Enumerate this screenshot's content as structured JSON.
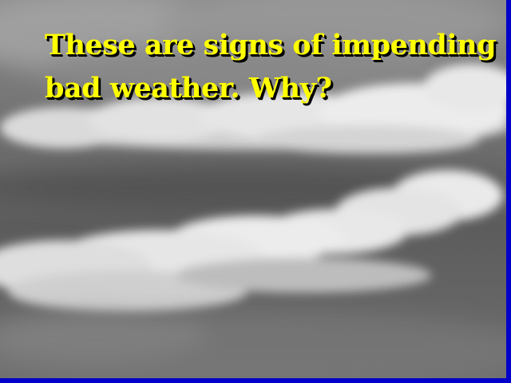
{
  "slide": {
    "caption_line_1": "These are signs of impending",
    "caption_line_2": "bad weather. Why?"
  },
  "colors": {
    "caption_text": "#ffff00",
    "caption_shadow": "#000000",
    "frame_border": "#0000c8",
    "sky_base": "#6a6a6a",
    "cloud": "#e6e6e6"
  }
}
